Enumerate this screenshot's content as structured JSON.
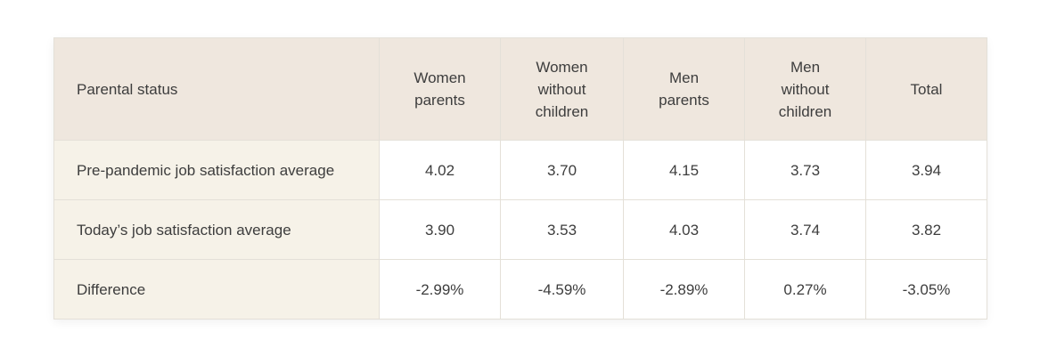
{
  "colors": {
    "header_bg": "#efe7de",
    "row_label_bg": "#f6f2e8",
    "cell_bg": "#ffffff",
    "border": "#e4e0d8",
    "text": "#3d3d3d"
  },
  "chart_data": {
    "type": "table",
    "columns": [
      "Parental status",
      "Women parents",
      "Women without children",
      "Men parents",
      "Men without children",
      "Total"
    ],
    "rows": [
      {
        "label": "Pre-pandemic job satisfaction average",
        "values": [
          "4.02",
          "3.70",
          "4.15",
          "3.73",
          "3.94"
        ]
      },
      {
        "label": "Today’s job satisfaction average",
        "values": [
          "3.90",
          "3.53",
          "4.03",
          "3.74",
          "3.82"
        ]
      },
      {
        "label": "Difference",
        "values": [
          "-2.99%",
          "-4.59%",
          "-2.89%",
          "0.27%",
          "-3.05%"
        ]
      }
    ]
  },
  "header_lines": [
    [
      "Parental status"
    ],
    [
      "Women",
      "parents"
    ],
    [
      "Women",
      "without",
      "children"
    ],
    [
      "Men",
      "parents"
    ],
    [
      "Men",
      "without",
      "children"
    ],
    [
      "Total"
    ]
  ]
}
